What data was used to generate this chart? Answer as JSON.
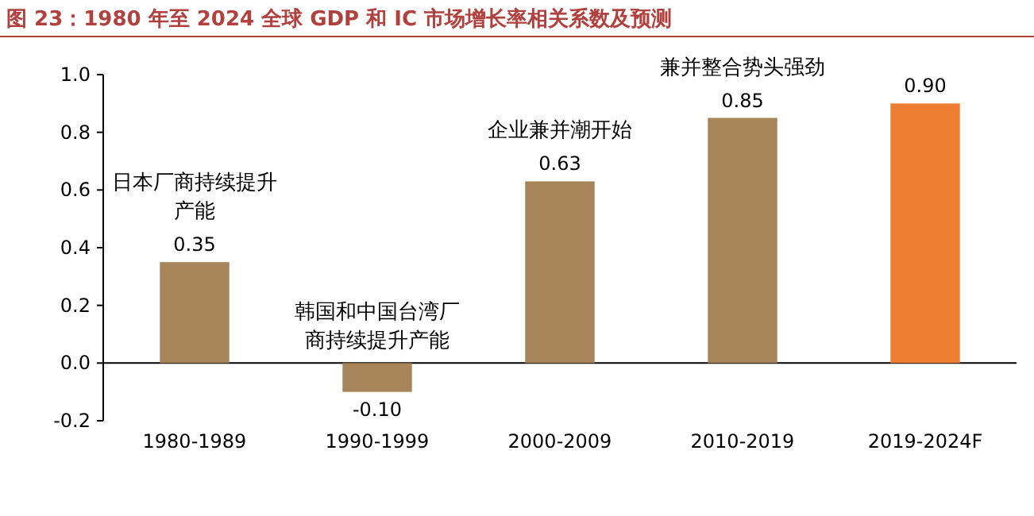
{
  "chart_data": {
    "type": "bar",
    "title": "图 23：1980 年至 2024 全球 GDP 和 IC 市场增长率相关系数及预测",
    "categories": [
      "1980-1989",
      "1990-1999",
      "2000-2009",
      "2010-2019",
      "2019-2024F"
    ],
    "values": [
      0.35,
      -0.1,
      0.63,
      0.85,
      0.9
    ],
    "value_labels": [
      "0.35",
      "-0.10",
      "0.63",
      "0.85",
      "0.90"
    ],
    "colors": [
      "#a8845a",
      "#a8845a",
      "#a8845a",
      "#a8845a",
      "#ed7d31"
    ],
    "ylim": [
      -0.2,
      1.0
    ],
    "yticks": [
      {
        "value": -0.2,
        "label": "-0.2"
      },
      {
        "value": 0,
        "label": "0.0"
      },
      {
        "value": 0.2,
        "label": "0.2"
      },
      {
        "value": 0.4,
        "label": "0.4"
      },
      {
        "value": 0.6,
        "label": "0.6"
      },
      {
        "value": 0.8,
        "label": "0.8"
      },
      {
        "value": 1.0,
        "label": "1.0"
      }
    ],
    "annotations": [
      {
        "text": "日本厂商持续提升产能",
        "x": "1980-1989",
        "y": 0.35
      },
      {
        "text": "韩国和中国台湾厂商持续提升产能",
        "x": "1990-1999",
        "y": -0.1
      },
      {
        "text": "企业兼并潮开始",
        "x": "2000-2009",
        "y": 0.63
      },
      {
        "text": "兼并整合势头强劲",
        "x": "2010-2019",
        "y": 0.85
      }
    ]
  }
}
